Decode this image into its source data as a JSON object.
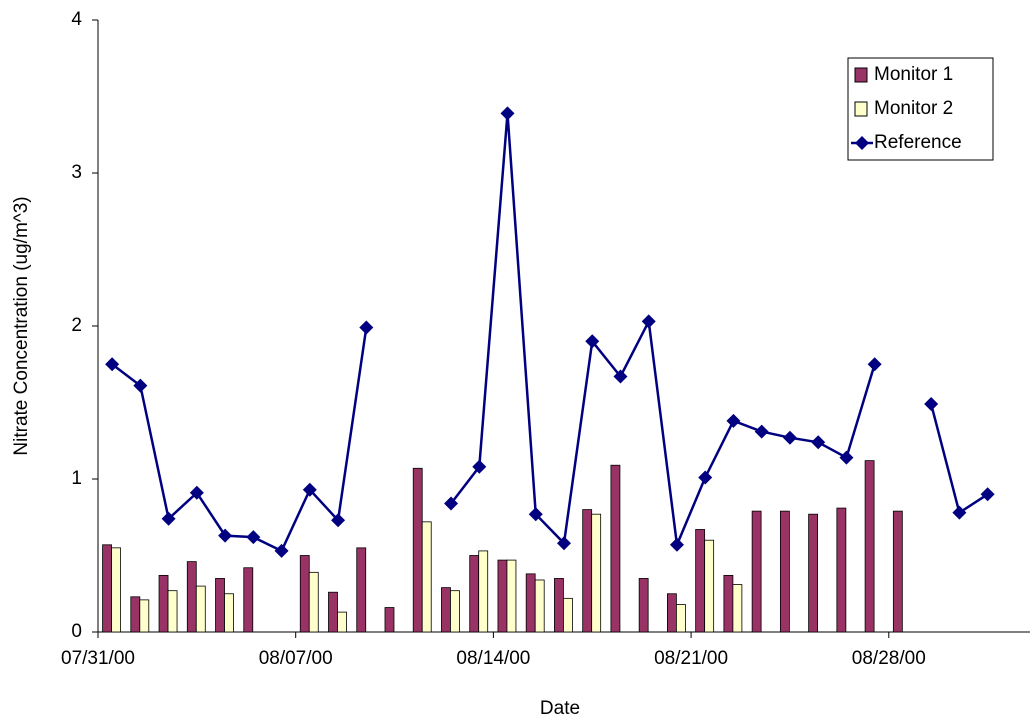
{
  "chart_data": {
    "type": "bar-line",
    "x_label": "Date",
    "y_label": "Nitrate Concentration (ug/m^3)",
    "x": [
      "07/31/00",
      "08/01/00",
      "08/02/00",
      "08/03/00",
      "08/04/00",
      "08/05/00",
      "08/06/00",
      "08/07/00",
      "08/08/00",
      "08/09/00",
      "08/10/00",
      "08/11/00",
      "08/12/00",
      "08/13/00",
      "08/14/00",
      "08/15/00",
      "08/16/00",
      "08/17/00",
      "08/18/00",
      "08/19/00",
      "08/20/00",
      "08/21/00",
      "08/22/00",
      "08/23/00",
      "08/24/00",
      "08/25/00",
      "08/26/00",
      "08/27/00",
      "08/28/00",
      "08/29/00",
      "08/30/00",
      "08/31/00"
    ],
    "xlim": [
      "07/31/00",
      "09/02/00"
    ],
    "xticks": [
      "07/31/00",
      "08/07/00",
      "08/14/00",
      "08/21/00",
      "08/28/00"
    ],
    "ylim": [
      0,
      4
    ],
    "yticks": [
      0,
      1,
      2,
      3,
      4
    ],
    "legend": "upper right",
    "series": [
      {
        "name": "Monitor 1",
        "kind": "bar",
        "color": "#993366",
        "values": [
          0.57,
          0.23,
          0.37,
          0.46,
          0.35,
          0.42,
          null,
          0.5,
          0.26,
          0.55,
          0.16,
          1.07,
          0.29,
          0.5,
          0.47,
          0.38,
          0.35,
          0.8,
          1.09,
          0.35,
          0.25,
          0.67,
          0.37,
          0.79,
          0.79,
          0.77,
          0.81,
          1.12,
          0.79,
          null,
          null,
          null
        ]
      },
      {
        "name": "Monitor 2",
        "kind": "bar",
        "color": "#ffffcc",
        "values": [
          0.55,
          0.21,
          0.27,
          0.3,
          0.25,
          null,
          null,
          0.39,
          0.13,
          null,
          null,
          0.72,
          0.27,
          0.53,
          0.47,
          0.34,
          0.22,
          0.77,
          null,
          null,
          0.18,
          0.6,
          0.31,
          null,
          null,
          null,
          null,
          null,
          null,
          null,
          null,
          null
        ]
      },
      {
        "name": "Reference",
        "kind": "line",
        "color": "#000080",
        "values": [
          1.75,
          1.61,
          0.74,
          0.91,
          0.63,
          0.62,
          0.53,
          0.93,
          0.73,
          1.99,
          null,
          null,
          0.84,
          1.08,
          3.39,
          0.77,
          0.58,
          1.9,
          1.67,
          2.03,
          0.57,
          1.01,
          1.38,
          1.31,
          1.27,
          1.24,
          1.14,
          1.75,
          null,
          1.49,
          0.78,
          0.9
        ]
      }
    ]
  }
}
